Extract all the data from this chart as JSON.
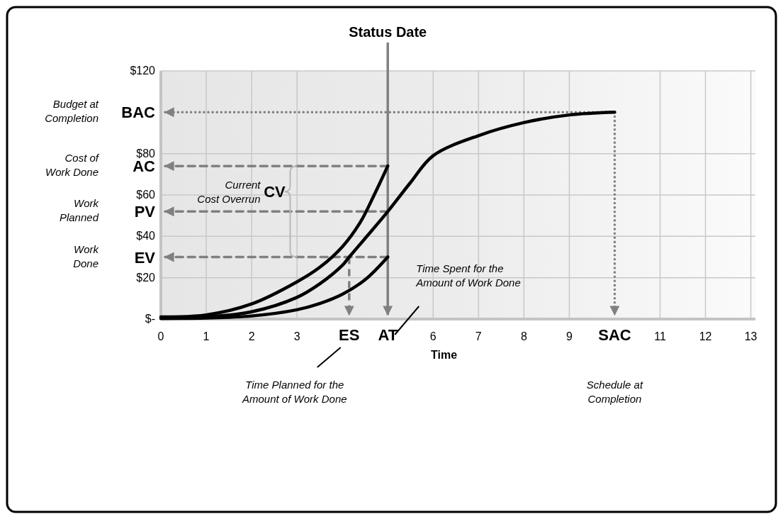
{
  "chart_data": {
    "type": "line",
    "xlabel": "Time",
    "xlim": [
      0,
      13.1
    ],
    "ylim": [
      0,
      120
    ],
    "xticks": [
      0,
      1,
      2,
      3,
      {
        "value": 4.15,
        "label": "ES"
      },
      {
        "value": 5,
        "label": "AT"
      },
      6,
      7,
      8,
      9,
      {
        "value": 10,
        "label": "SAC"
      },
      11,
      12,
      13
    ],
    "yticks": [
      {
        "value": 0,
        "label": "$-"
      },
      {
        "value": 20,
        "label": "$20"
      },
      {
        "value": 40,
        "label": "$40"
      },
      {
        "value": 60,
        "label": "$60"
      },
      {
        "value": 80,
        "label": "$80"
      },
      {
        "value": 120,
        "label": "$120"
      }
    ],
    "grid": true,
    "marker": "none",
    "line_style": "solid",
    "series": [
      {
        "color": "#000000",
        "x": [
          0,
          1,
          2,
          3,
          3.5,
          4,
          4.4,
          4.7,
          5
        ],
        "values": [
          1,
          2,
          7.3,
          18,
          25,
          35,
          47,
          60,
          74
        ]
      },
      {
        "color": "#000000",
        "x": [
          0,
          1,
          2,
          3,
          3.5,
          4,
          4.15,
          4.5,
          5,
          5.5,
          6,
          7,
          8,
          9,
          10
        ],
        "values": [
          0.5,
          1,
          3.5,
          10.5,
          17,
          26,
          30,
          39,
          52,
          66,
          79,
          88.7,
          95,
          98.7,
          100
        ]
      },
      {
        "color": "#000000",
        "x": [
          0,
          1,
          2,
          3,
          3.5,
          4,
          4.5,
          5
        ],
        "values": [
          0.3,
          0.5,
          1.5,
          4.5,
          7.5,
          12,
          19,
          30
        ]
      }
    ],
    "ref_lines": [
      {
        "axis": "y",
        "value": 100,
        "label": "BAC",
        "color": "#808080",
        "line_style": "dotted"
      },
      {
        "axis": "y",
        "value": 74,
        "label": "AC",
        "color": "#808080",
        "line_style": "dashed"
      },
      {
        "axis": "y",
        "value": 52,
        "label": "PV",
        "color": "#808080",
        "line_style": "dashed"
      },
      {
        "axis": "y",
        "value": 30,
        "label": "EV",
        "color": "#808080",
        "line_style": "dashed"
      },
      {
        "axis": "x",
        "value": 5,
        "label": "Status Date",
        "color": "#808080",
        "line_style": "solid"
      },
      {
        "axis": "x",
        "value": 4.15,
        "label": null,
        "color": "#808080",
        "line_style": "dashed"
      },
      {
        "axis": "x",
        "value": 10,
        "label": null,
        "color": "#808080",
        "line_style": "dotted"
      }
    ],
    "annotations": [
      "Budget at Completion",
      "Cost of Work Done",
      "Work Planned",
      "Work Done",
      "Current Cost Overrun",
      {
        "text": "CV",
        "x": 2.85,
        "y": 52
      },
      "Time Spent for the Amount of Work Done",
      "Time Planned for the Amount of Work Done",
      "Schedule at Completion"
    ]
  }
}
